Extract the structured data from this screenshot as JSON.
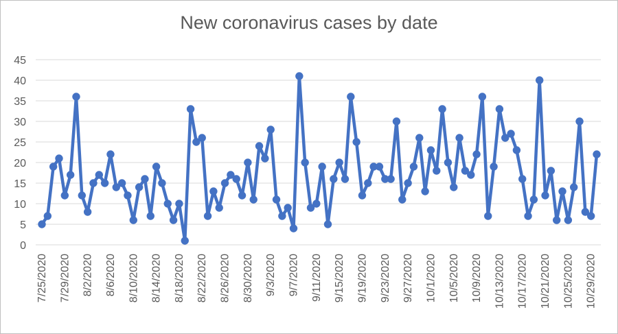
{
  "chart_data": {
    "type": "line",
    "title": "New coronavirus cases by date",
    "xlabel": "",
    "ylabel": "",
    "ylim": [
      0,
      45
    ],
    "y_ticks": [
      0,
      5,
      10,
      15,
      20,
      25,
      30,
      35,
      40,
      45
    ],
    "grid": true,
    "legend": "none",
    "colors": {
      "line": "#4472C4",
      "grid": "#d9d9d9",
      "text": "#595959"
    },
    "x_tick_labels": [
      "7/25/2020",
      "7/29/2020",
      "8/2/2020",
      "8/6/2020",
      "8/10/2020",
      "8/14/2020",
      "8/18/2020",
      "8/22/2020",
      "8/26/2020",
      "8/30/2020",
      "9/3/2020",
      "9/7/2020",
      "9/11/2020",
      "9/15/2020",
      "9/19/2020",
      "9/23/2020",
      "9/27/2020",
      "10/1/2020",
      "10/5/2020",
      "10/9/2020",
      "10/13/2020",
      "10/17/2020",
      "10/21/2020",
      "10/25/2020",
      "10/29/2020"
    ],
    "series": [
      {
        "x": [
          "7/25/2020",
          "7/26/2020",
          "7/27/2020",
          "7/28/2020",
          "7/29/2020",
          "7/30/2020",
          "7/31/2020",
          "8/1/2020",
          "8/2/2020",
          "8/3/2020",
          "8/4/2020",
          "8/5/2020",
          "8/6/2020",
          "8/7/2020",
          "8/8/2020",
          "8/9/2020",
          "8/10/2020",
          "8/11/2020",
          "8/12/2020",
          "8/13/2020",
          "8/14/2020",
          "8/15/2020",
          "8/16/2020",
          "8/17/2020",
          "8/18/2020",
          "8/19/2020",
          "8/20/2020",
          "8/21/2020",
          "8/22/2020",
          "8/23/2020",
          "8/24/2020",
          "8/25/2020",
          "8/26/2020",
          "8/27/2020",
          "8/28/2020",
          "8/29/2020",
          "8/30/2020",
          "8/31/2020",
          "9/1/2020",
          "9/2/2020",
          "9/3/2020",
          "9/4/2020",
          "9/5/2020",
          "9/6/2020",
          "9/7/2020",
          "9/8/2020",
          "9/9/2020",
          "9/10/2020",
          "9/11/2020",
          "9/12/2020",
          "9/13/2020",
          "9/14/2020",
          "9/15/2020",
          "9/16/2020",
          "9/17/2020",
          "9/18/2020",
          "9/19/2020",
          "9/20/2020",
          "9/21/2020",
          "9/22/2020",
          "9/23/2020",
          "9/24/2020",
          "9/25/2020",
          "9/26/2020",
          "9/27/2020",
          "9/28/2020",
          "9/29/2020",
          "9/30/2020",
          "10/1/2020",
          "10/2/2020",
          "10/3/2020",
          "10/4/2020",
          "10/5/2020",
          "10/6/2020",
          "10/7/2020",
          "10/8/2020",
          "10/9/2020",
          "10/10/2020",
          "10/11/2020",
          "10/12/2020",
          "10/13/2020",
          "10/14/2020",
          "10/15/2020",
          "10/16/2020",
          "10/17/2020",
          "10/18/2020",
          "10/19/2020",
          "10/20/2020",
          "10/21/2020",
          "10/22/2020",
          "10/23/2020",
          "10/24/2020",
          "10/25/2020",
          "10/26/2020",
          "10/27/2020",
          "10/28/2020",
          "10/29/2020",
          "10/30/2020"
        ],
        "values": [
          5,
          7,
          19,
          21,
          12,
          17,
          36,
          12,
          8,
          15,
          17,
          15,
          22,
          14,
          15,
          12,
          6,
          14,
          16,
          7,
          19,
          15,
          10,
          6,
          10,
          1,
          33,
          25,
          26,
          7,
          13,
          9,
          15,
          17,
          16,
          12,
          20,
          11,
          24,
          21,
          28,
          11,
          7,
          9,
          4,
          41,
          20,
          9,
          10,
          19,
          5,
          16,
          20,
          16,
          36,
          25,
          12,
          15,
          19,
          19,
          16,
          16,
          30,
          11,
          15,
          19,
          26,
          13,
          23,
          18,
          33,
          20,
          14,
          26,
          18,
          17,
          22,
          36,
          7,
          19,
          33,
          26,
          27,
          23,
          16,
          7,
          11,
          40,
          12,
          18,
          6,
          13,
          6,
          14,
          30,
          8,
          7,
          22
        ]
      }
    ]
  }
}
